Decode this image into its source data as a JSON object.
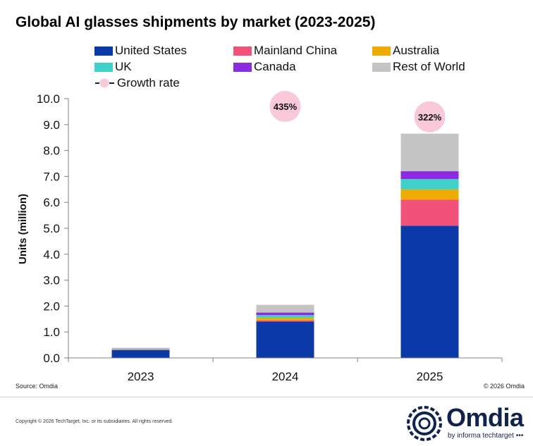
{
  "chart_data": {
    "type": "bar",
    "stacked": true,
    "title": "Global AI glasses shipments by market (2023-2025)",
    "xlabel": "",
    "ylabel": "Units (million)",
    "ylim": [
      0,
      10
    ],
    "ytick_step": 1,
    "ytick_labels": [
      "0.0",
      "1.0",
      "2.0",
      "3.0",
      "4.0",
      "5.0",
      "6.0",
      "7.0",
      "8.0",
      "9.0",
      "10.0"
    ],
    "grid": false,
    "categories": [
      "2023",
      "2024",
      "2025"
    ],
    "series": [
      {
        "name": "United States",
        "color": "#0b3aa8",
        "values": [
          0.3,
          1.4,
          5.1
        ]
      },
      {
        "name": "Mainland China",
        "color": "#f2527a",
        "values": [
          0.01,
          0.05,
          1.0
        ]
      },
      {
        "name": "Australia",
        "color": "#eeab00",
        "values": [
          0.01,
          0.1,
          0.4
        ]
      },
      {
        "name": "UK",
        "color": "#3fd1c7",
        "values": [
          0.01,
          0.1,
          0.4
        ]
      },
      {
        "name": "Canada",
        "color": "#8a2be2",
        "values": [
          0.01,
          0.1,
          0.3
        ]
      },
      {
        "name": "Rest of World",
        "color": "#c4c4c4",
        "values": [
          0.05,
          0.3,
          1.45
        ]
      }
    ],
    "growth_rate": {
      "name": "Growth rate",
      "color": "#f9c9d8",
      "labels": [
        "",
        "435%",
        "322%"
      ],
      "values": [
        null,
        9.7,
        9.3
      ]
    },
    "legend_position": "top"
  },
  "source": "Source: Omdia",
  "copyright_chart": "© 2026 Omdia",
  "footer_copyright": "Copyright © 2026 TechTarget, Inc. or its subsidiaries. All rights reserved.",
  "brand": {
    "name": "Omdia",
    "tagline": "by informa techtarget •••",
    "color": "#10234d"
  }
}
